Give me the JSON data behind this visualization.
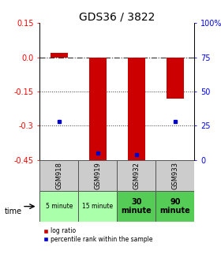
{
  "title": "GDS36 / 3822",
  "samples": [
    "GSM918",
    "GSM919",
    "GSM932",
    "GSM933"
  ],
  "time_labels": [
    "5 minute",
    "15 minute",
    "30\nminute",
    "90\nminute"
  ],
  "time_colors": [
    "#aaffaa",
    "#aaffaa",
    "#55cc55",
    "#55cc55"
  ],
  "log_ratio": [
    0.02,
    -0.46,
    -0.46,
    -0.18
  ],
  "percentile_rank": [
    28,
    5,
    4,
    28
  ],
  "ylim_left": [
    -0.45,
    0.15
  ],
  "ylim_right": [
    0,
    100
  ],
  "yticks_left": [
    0.15,
    0.0,
    -0.15,
    -0.3,
    -0.45
  ],
  "yticks_right": [
    100,
    75,
    50,
    25,
    0
  ],
  "bar_color": "#cc0000",
  "dot_color": "#0000cc",
  "title_fontsize": 10,
  "tick_fontsize": 7,
  "bar_width": 0.45
}
